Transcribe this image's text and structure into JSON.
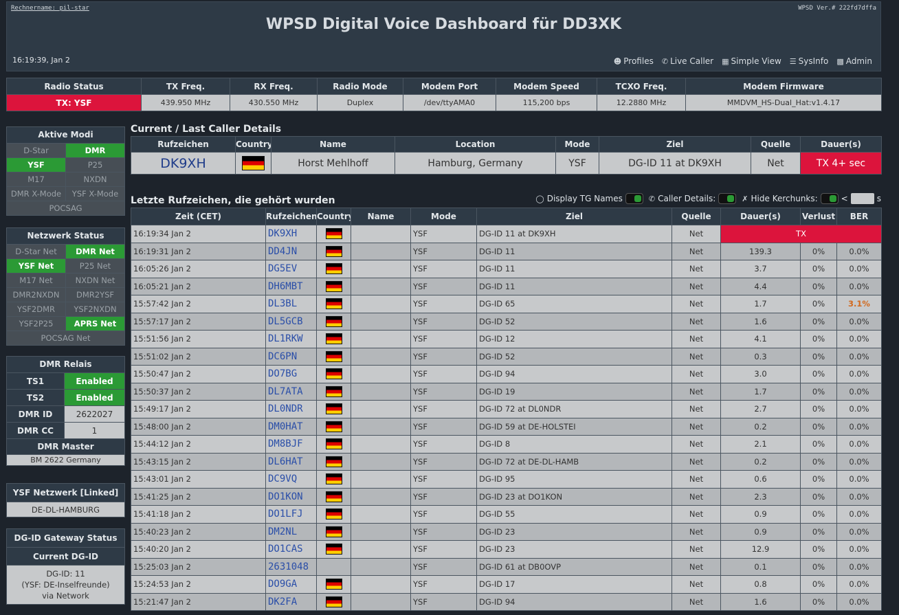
{
  "header": {
    "hostname": "Rechnername: pil-star",
    "version": "WPSD Ver.# 222fd7dffa",
    "title": "WPSD Digital Voice Dashboard für DD3XK",
    "clock": "16:19:39, Jan 2",
    "nav": [
      {
        "label": "Profiles",
        "icon": "users-icon"
      },
      {
        "label": "Live Caller",
        "icon": "phone-icon"
      },
      {
        "label": "Simple View",
        "icon": "table-icon"
      },
      {
        "label": "SysInfo",
        "icon": "list-icon"
      },
      {
        "label": "Admin",
        "icon": "lock-icon"
      }
    ]
  },
  "radio": {
    "headers": [
      "Radio Status",
      "TX Freq.",
      "RX Freq.",
      "Radio Mode",
      "Modem Port",
      "Modem Speed",
      "TCXO Freq.",
      "Modem Firmware"
    ],
    "values": [
      "TX: YSF",
      "439.950 MHz",
      "430.550 MHz",
      "Duplex",
      "/dev/ttyAMA0",
      "115,200 bps",
      "12.2880 MHz",
      "MMDVM_HS-Dual_Hat:v1.4.17"
    ]
  },
  "modes": {
    "title": "Aktive Modi",
    "items": [
      {
        "label": "D-Star",
        "on": false
      },
      {
        "label": "DMR",
        "on": true
      },
      {
        "label": "YSF",
        "on": true
      },
      {
        "label": "P25",
        "on": false
      },
      {
        "label": "M17",
        "on": false
      },
      {
        "label": "NXDN",
        "on": false
      },
      {
        "label": "DMR X-Mode",
        "on": false
      },
      {
        "label": "YSF X-Mode",
        "on": false
      },
      {
        "label": "POCSAG",
        "on": false
      }
    ]
  },
  "network": {
    "title": "Netzwerk Status",
    "items": [
      {
        "label": "D-Star Net",
        "on": false
      },
      {
        "label": "DMR Net",
        "on": true
      },
      {
        "label": "YSF Net",
        "on": true
      },
      {
        "label": "P25 Net",
        "on": false
      },
      {
        "label": "M17 Net",
        "on": false
      },
      {
        "label": "NXDN Net",
        "on": false
      },
      {
        "label": "DMR2NXDN",
        "on": false
      },
      {
        "label": "DMR2YSF",
        "on": false
      },
      {
        "label": "YSF2DMR",
        "on": false
      },
      {
        "label": "YSF2NXDN",
        "on": false
      },
      {
        "label": "YSF2P25",
        "on": false
      },
      {
        "label": "APRS Net",
        "on": true
      },
      {
        "label": "POCSAG Net",
        "on": false
      }
    ]
  },
  "dmr": {
    "title": "DMR Relais",
    "ts1_label": "TS1",
    "ts1": "Enabled",
    "ts2_label": "TS2",
    "ts2": "Enabled",
    "id_label": "DMR ID",
    "id": "2622027",
    "cc_label": "DMR CC",
    "cc": "1",
    "master_title": "DMR Master",
    "master": "BM 2622 Germany"
  },
  "ysf": {
    "title": "YSF Netzwerk [Linked]",
    "value": "DE-DL-HAMBURG"
  },
  "dgid": {
    "title": "DG-ID Gateway Status",
    "current_title": "Current DG-ID",
    "line1": "DG-ID: 11",
    "line2": "(YSF: DE-Inselfreunde)",
    "line3": "via Network"
  },
  "current": {
    "title": "Current / Last Caller Details",
    "headers": [
      "Rufzeichen",
      "Country",
      "Name",
      "Location",
      "Mode",
      "Ziel",
      "Quelle",
      "Dauer(s)"
    ],
    "callsign": "DK9XH",
    "name": "Horst Mehlhoff",
    "location": "Hamburg, Germany",
    "mode": "YSF",
    "target": "DG-ID 11 at DK9XH",
    "source": "Net",
    "duration": "TX 4+ sec"
  },
  "last": {
    "title": "Letzte Rufzeichen, die gehört wurden",
    "toggle_tg": "Display TG Names",
    "toggle_caller": "Caller Details:",
    "toggle_kerchunk": "Hide Kerchunks:",
    "lt": "<",
    "unit": "s",
    "headers": [
      "Zeit (CET)",
      "Rufzeichen",
      "Country",
      "Name",
      "Mode",
      "Ziel",
      "Quelle",
      "Dauer(s)",
      "Verlust",
      "BER"
    ],
    "rows": [
      {
        "time": "16:19:34 Jan 2",
        "call": "DK9XH",
        "flag": true,
        "name": "",
        "mode": "YSF",
        "target": "DG-ID 11 at DK9XH",
        "src": "Net",
        "dur": "TX",
        "loss": "",
        "ber": "",
        "tx": true
      },
      {
        "time": "16:19:31 Jan 2",
        "call": "DD4JN",
        "flag": true,
        "name": "",
        "mode": "YSF",
        "target": "DG-ID 11",
        "src": "Net",
        "dur": "139.3",
        "loss": "0%",
        "ber": "0.0%"
      },
      {
        "time": "16:05:26 Jan 2",
        "call": "DG5EV",
        "flag": true,
        "name": "",
        "mode": "YSF",
        "target": "DG-ID 11",
        "src": "Net",
        "dur": "3.7",
        "loss": "0%",
        "ber": "0.0%"
      },
      {
        "time": "16:05:21 Jan 2",
        "call": "DH6MBT",
        "flag": true,
        "name": "",
        "mode": "YSF",
        "target": "DG-ID 11",
        "src": "Net",
        "dur": "4.4",
        "loss": "0%",
        "ber": "0.0%"
      },
      {
        "time": "15:57:42 Jan 2",
        "call": "DL3BL",
        "flag": true,
        "name": "",
        "mode": "YSF",
        "target": "DG-ID 65",
        "src": "Net",
        "dur": "1.7",
        "loss": "0%",
        "ber": "3.1%",
        "warn": true
      },
      {
        "time": "15:57:17 Jan 2",
        "call": "DL5GCB",
        "flag": true,
        "name": "",
        "mode": "YSF",
        "target": "DG-ID 52",
        "src": "Net",
        "dur": "1.6",
        "loss": "0%",
        "ber": "0.0%"
      },
      {
        "time": "15:51:56 Jan 2",
        "call": "DL1RKW",
        "flag": true,
        "name": "",
        "mode": "YSF",
        "target": "DG-ID 12",
        "src": "Net",
        "dur": "4.1",
        "loss": "0%",
        "ber": "0.0%"
      },
      {
        "time": "15:51:02 Jan 2",
        "call": "DC6PN",
        "flag": true,
        "name": "",
        "mode": "YSF",
        "target": "DG-ID 52",
        "src": "Net",
        "dur": "0.3",
        "loss": "0%",
        "ber": "0.0%"
      },
      {
        "time": "15:50:47 Jan 2",
        "call": "DO7BG",
        "flag": true,
        "name": "",
        "mode": "YSF",
        "target": "DG-ID 94",
        "src": "Net",
        "dur": "3.0",
        "loss": "0%",
        "ber": "0.0%"
      },
      {
        "time": "15:50:37 Jan 2",
        "call": "DL7ATA",
        "flag": true,
        "name": "",
        "mode": "YSF",
        "target": "DG-ID 19",
        "src": "Net",
        "dur": "1.7",
        "loss": "0%",
        "ber": "0.0%"
      },
      {
        "time": "15:49:17 Jan 2",
        "call": "DL0NDR",
        "flag": true,
        "name": "",
        "mode": "YSF",
        "target": "DG-ID 72 at DL0NDR",
        "src": "Net",
        "dur": "2.7",
        "loss": "0%",
        "ber": "0.0%"
      },
      {
        "time": "15:48:00 Jan 2",
        "call": "DM0HAT",
        "flag": true,
        "name": "",
        "mode": "YSF",
        "target": "DG-ID 59 at DE-HOLSTEI",
        "src": "Net",
        "dur": "0.2",
        "loss": "0%",
        "ber": "0.0%"
      },
      {
        "time": "15:44:12 Jan 2",
        "call": "DM8BJF",
        "flag": true,
        "name": "",
        "mode": "YSF",
        "target": "DG-ID 8",
        "src": "Net",
        "dur": "2.1",
        "loss": "0%",
        "ber": "0.0%"
      },
      {
        "time": "15:43:15 Jan 2",
        "call": "DL6HAT",
        "flag": true,
        "name": "",
        "mode": "YSF",
        "target": "DG-ID 72 at DE-DL-HAMB",
        "src": "Net",
        "dur": "0.2",
        "loss": "0%",
        "ber": "0.0%"
      },
      {
        "time": "15:43:01 Jan 2",
        "call": "DC9VQ",
        "flag": true,
        "name": "",
        "mode": "YSF",
        "target": "DG-ID 95",
        "src": "Net",
        "dur": "0.6",
        "loss": "0%",
        "ber": "0.0%"
      },
      {
        "time": "15:41:25 Jan 2",
        "call": "DO1KON",
        "flag": true,
        "name": "",
        "mode": "YSF",
        "target": "DG-ID 23 at DO1KON",
        "src": "Net",
        "dur": "2.3",
        "loss": "0%",
        "ber": "0.0%"
      },
      {
        "time": "15:41:18 Jan 2",
        "call": "DO1LFJ",
        "flag": true,
        "name": "",
        "mode": "YSF",
        "target": "DG-ID 55",
        "src": "Net",
        "dur": "0.9",
        "loss": "0%",
        "ber": "0.0%"
      },
      {
        "time": "15:40:23 Jan 2",
        "call": "DM2NL",
        "flag": true,
        "name": "",
        "mode": "YSF",
        "target": "DG-ID 23",
        "src": "Net",
        "dur": "0.9",
        "loss": "0%",
        "ber": "0.0%"
      },
      {
        "time": "15:40:20 Jan 2",
        "call": "DO1CAS",
        "flag": true,
        "name": "",
        "mode": "YSF",
        "target": "DG-ID 23",
        "src": "Net",
        "dur": "12.9",
        "loss": "0%",
        "ber": "0.0%"
      },
      {
        "time": "15:25:03 Jan 2",
        "call": "2631048",
        "flag": false,
        "name": "",
        "mode": "YSF",
        "target": "DG-ID 61 at DB0OVP",
        "src": "Net",
        "dur": "0.1",
        "loss": "0%",
        "ber": "0.0%"
      },
      {
        "time": "15:24:53 Jan 2",
        "call": "DO9GA",
        "flag": true,
        "name": "",
        "mode": "YSF",
        "target": "DG-ID 17",
        "src": "Net",
        "dur": "0.8",
        "loss": "0%",
        "ber": "0.0%"
      },
      {
        "time": "15:21:47 Jan 2",
        "call": "DK2FA",
        "flag": true,
        "name": "",
        "mode": "YSF",
        "target": "DG-ID 94",
        "src": "Net",
        "dur": "1.6",
        "loss": "0%",
        "ber": "0.0%"
      }
    ]
  },
  "colors": {
    "tx_red": "#dc143c",
    "active_green": "#2b9a35",
    "header_bg": "#2e3a46",
    "page_bg": "#1d232b",
    "callsign_blue": "#2a4ea8",
    "ber_warn": "#d2691e"
  }
}
